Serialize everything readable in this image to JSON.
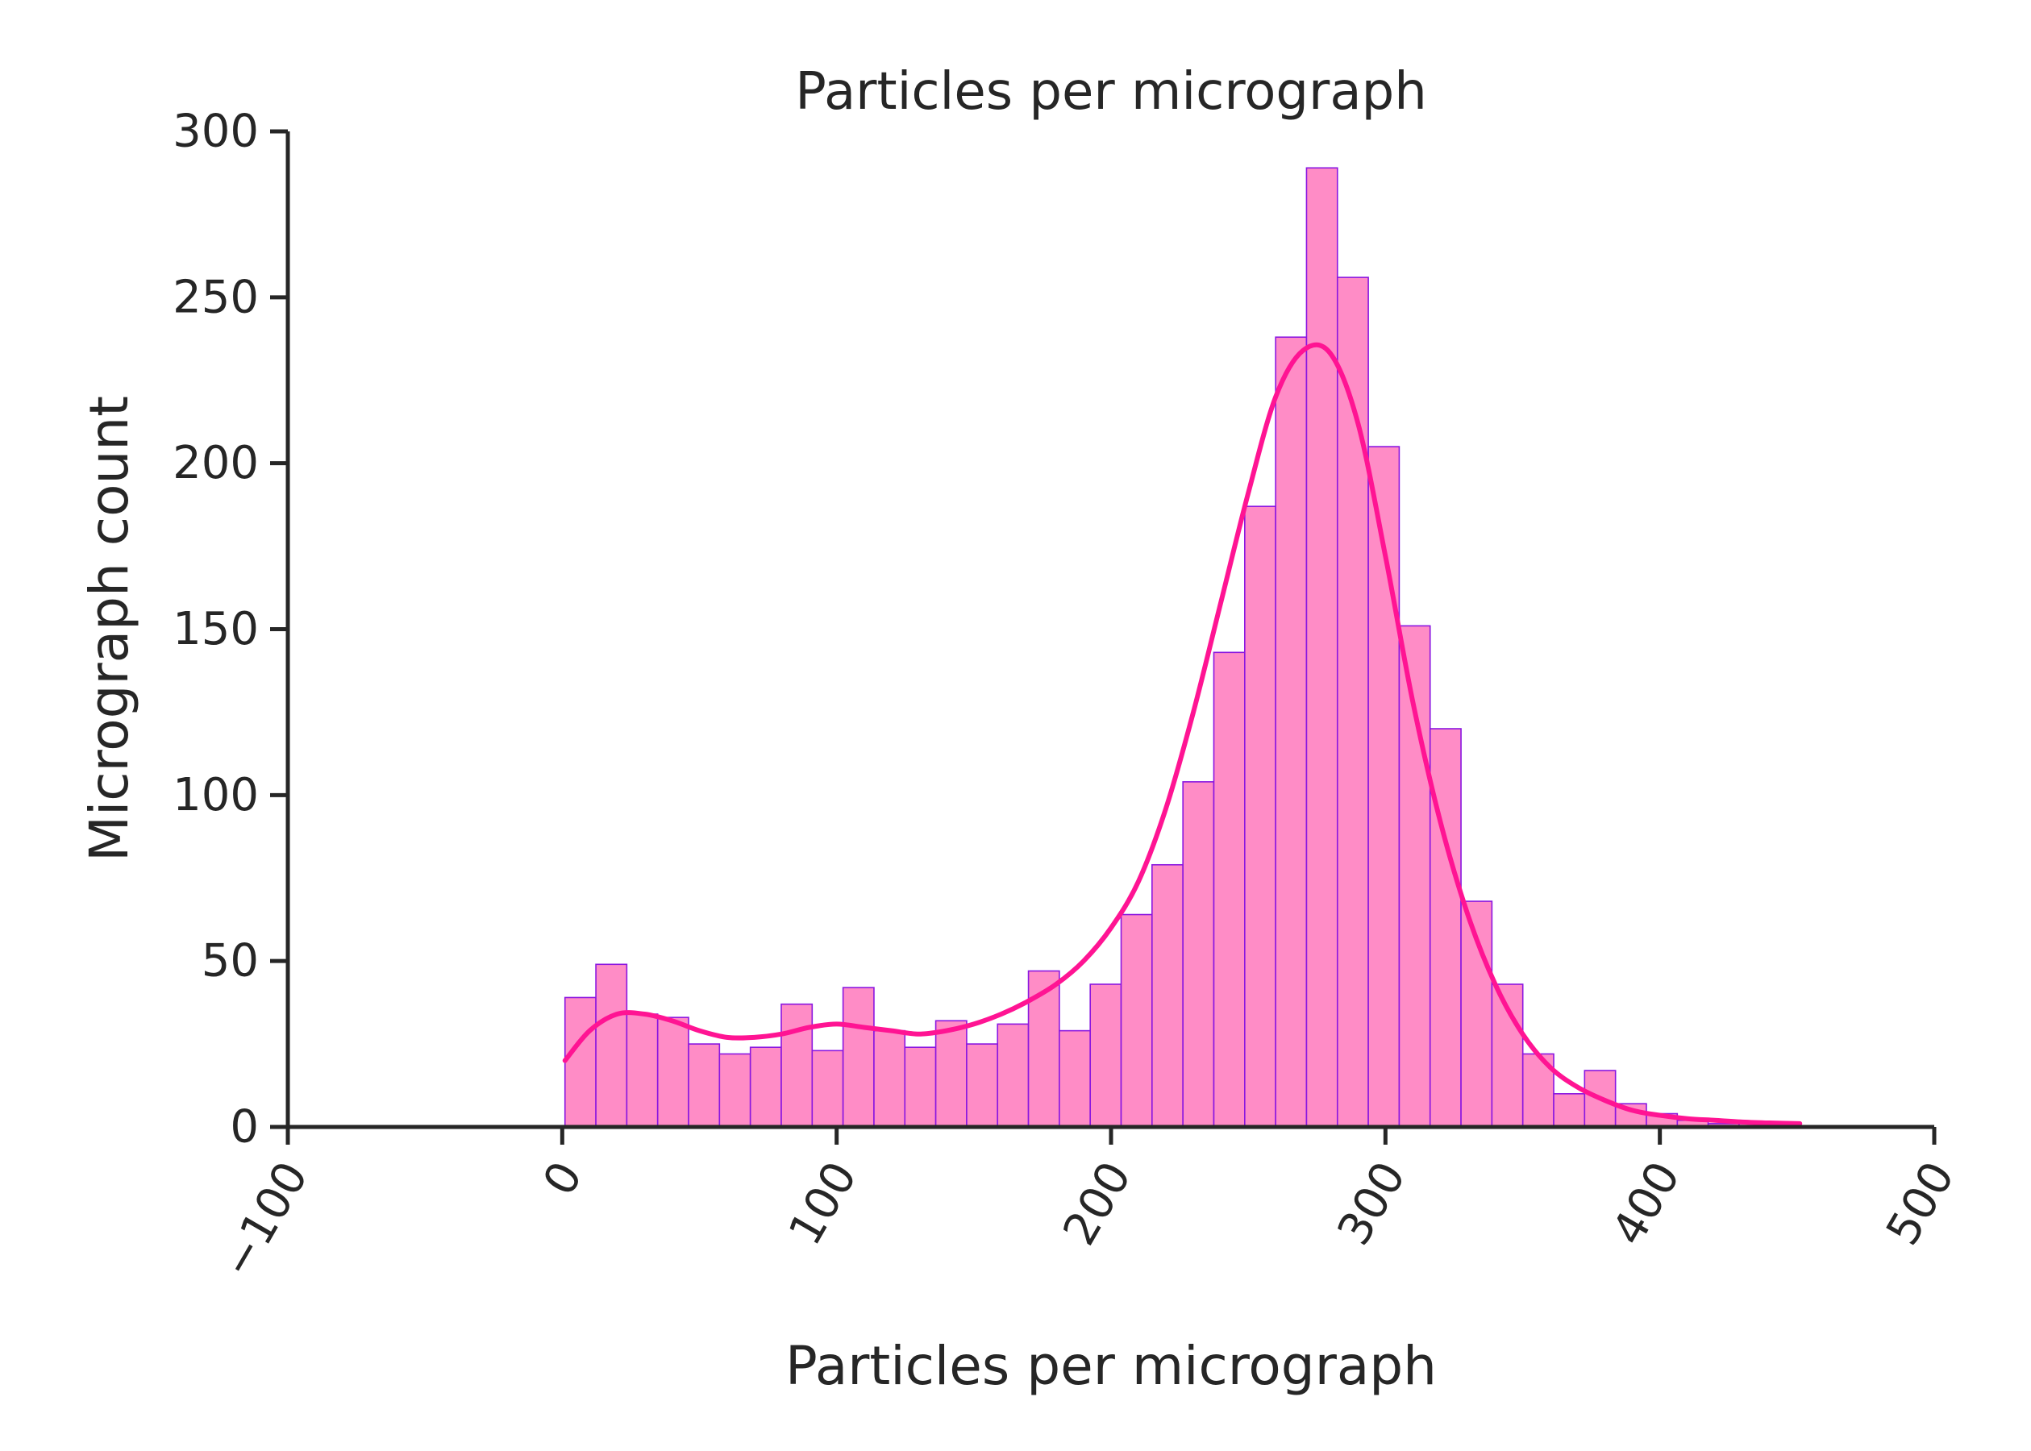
{
  "chart_data": {
    "type": "bar",
    "subtype": "histogram-with-kde",
    "title": "Particles per micrograph",
    "xlabel": "Particles per micrograph",
    "ylabel": "Micrograph count",
    "xlim": [
      -100,
      500
    ],
    "ylim": [
      0,
      300
    ],
    "x_ticks": [
      -100,
      0,
      100,
      200,
      300,
      400,
      500
    ],
    "x_tick_labels": [
      "−100",
      "0",
      "100",
      "200",
      "300",
      "400",
      "500"
    ],
    "y_ticks": [
      0,
      50,
      100,
      150,
      200,
      250,
      300
    ],
    "y_tick_labels": [
      "0",
      "50",
      "100",
      "150",
      "200",
      "250",
      "300"
    ],
    "x_tick_rotation_deg": -60,
    "grid": false,
    "legend": "none",
    "colors": {
      "bar_fill": "#ff8cc6",
      "bar_edge": "#8a16e0",
      "kde_line": "#ff1493",
      "axis": "#262626"
    },
    "bins": {
      "start": 1,
      "width": 11.26,
      "counts": [
        39,
        49,
        34,
        33,
        25,
        22,
        24,
        37,
        23,
        42,
        29,
        24,
        32,
        25,
        31,
        47,
        29,
        43,
        64,
        79,
        104,
        143,
        187,
        238,
        289,
        256,
        205,
        151,
        120,
        68,
        43,
        22,
        10,
        17,
        7,
        4,
        2,
        1,
        1,
        1
      ]
    },
    "kde": {
      "x": [
        1,
        10,
        20,
        30,
        40,
        50,
        60,
        70,
        80,
        90,
        100,
        110,
        120,
        130,
        140,
        150,
        160,
        170,
        180,
        190,
        200,
        210,
        220,
        230,
        240,
        250,
        260,
        270,
        280,
        290,
        300,
        310,
        320,
        330,
        340,
        350,
        360,
        370,
        380,
        390,
        400,
        410,
        420,
        430,
        440,
        451
      ],
      "y": [
        20,
        29,
        34,
        34,
        32,
        29,
        27,
        27,
        28,
        30,
        31,
        30,
        29,
        28,
        29,
        31,
        34,
        38,
        43,
        50,
        60,
        74,
        96,
        125,
        158,
        191,
        220,
        234,
        233,
        212,
        172,
        128,
        92,
        64,
        43,
        28,
        18,
        12,
        8,
        5,
        3.5,
        2.5,
        2,
        1.5,
        1.2,
        1
      ]
    }
  }
}
